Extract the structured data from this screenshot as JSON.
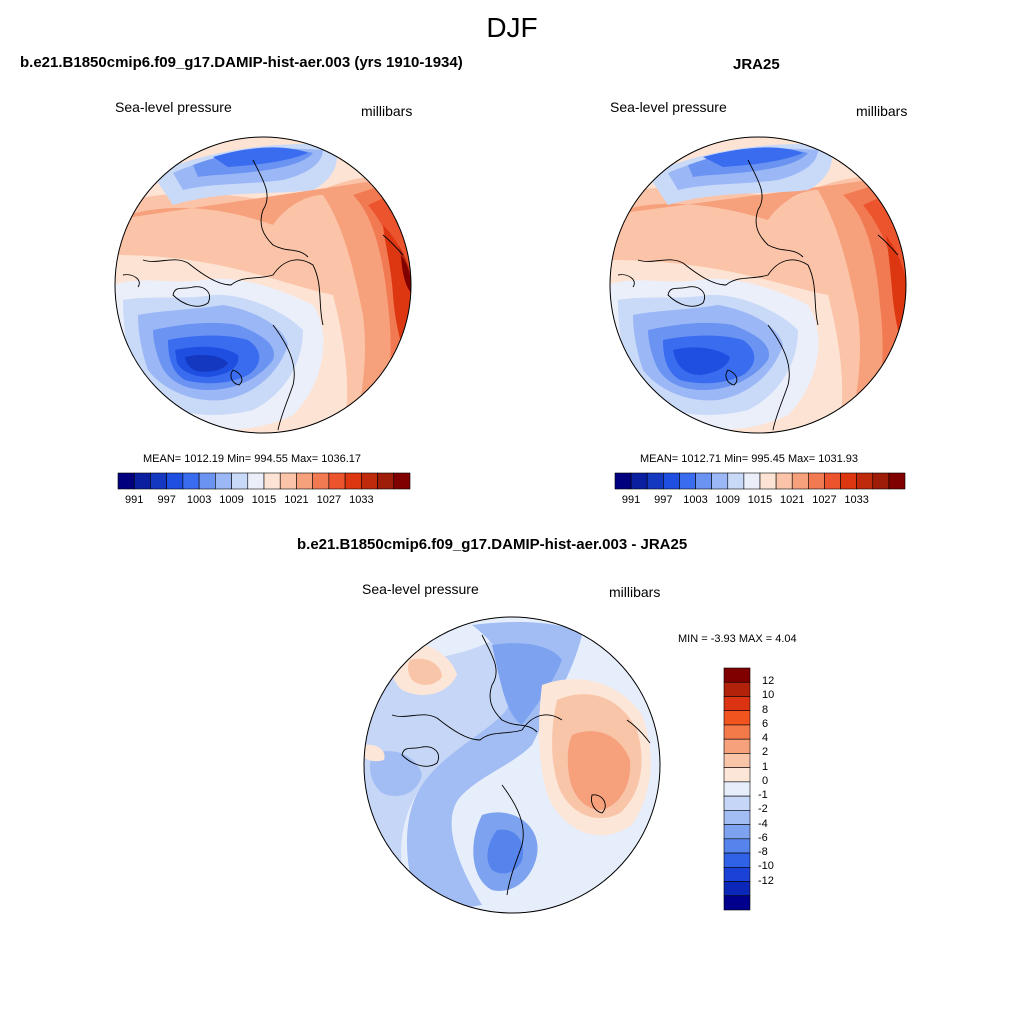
{
  "title": "DJF",
  "panels": [
    {
      "id": "model",
      "title": "b.e21.B1850cmip6.f09_g17.DAMIP-hist-aer.003 (yrs 1910-1934)",
      "left_label": "Sea-level pressure",
      "right_label": "millibars",
      "stats": "MEAN= 1012.19  Min= 994.55  Max= 1036.17"
    },
    {
      "id": "obs",
      "title": "JRA25",
      "left_label": "Sea-level pressure",
      "right_label": "millibars",
      "stats": "MEAN= 1012.71  Min= 995.45  Max= 1031.93"
    },
    {
      "id": "diff",
      "title": "b.e21.B1850cmip6.f09_g17.DAMIP-hist-aer.003 - JRA25",
      "left_label": "Sea-level pressure",
      "right_label": "millibars",
      "stats": "MIN =  -3.93 MAX =   4.04"
    }
  ],
  "abs_colorbar": {
    "colors": [
      "#00007f",
      "#0a1fa0",
      "#1438c0",
      "#1f4fe0",
      "#3a6cf0",
      "#6a93f2",
      "#9bb7f5",
      "#c9d9f8",
      "#ebeffa",
      "#fde3d4",
      "#fbc4a8",
      "#f7a07c",
      "#f27a52",
      "#ec542e",
      "#dd3712",
      "#bf2a0c",
      "#9e1d08",
      "#800000"
    ],
    "labels": [
      "991",
      "997",
      "1003",
      "1009",
      "1015",
      "1021",
      "1027",
      "1033"
    ]
  },
  "diff_colorbar": {
    "colors": [
      "#800000",
      "#b2210a",
      "#dc3412",
      "#f2541f",
      "#f47a4a",
      "#f6a07c",
      "#f9c5a9",
      "#fce6d8",
      "#e6eefb",
      "#c6d6f7",
      "#a2bdf4",
      "#7da2f0",
      "#5484ec",
      "#2f62e6",
      "#1a42d6",
      "#0a27b8",
      "#00008c"
    ],
    "labels": [
      "12",
      "10",
      "8",
      "6",
      "4",
      "2",
      "1",
      "0",
      "-1",
      "-2",
      "-4",
      "-6",
      "-8",
      "-10",
      "-12"
    ]
  },
  "chart_data": [
    {
      "type": "heatmap",
      "title": "b.e21.B1850cmip6.f09_g17.DAMIP-hist-aer.003 (yrs 1910-1934)",
      "variable": "Sea-level pressure",
      "units": "millibars",
      "projection": "north polar stereographic",
      "mean": 1012.19,
      "min": 994.55,
      "max": 1036.17,
      "contour_levels": [
        991,
        994,
        997,
        1000,
        1003,
        1006,
        1009,
        1012,
        1015,
        1018,
        1021,
        1024,
        1027,
        1030,
        1033
      ]
    },
    {
      "type": "heatmap",
      "title": "JRA25",
      "variable": "Sea-level pressure",
      "units": "millibars",
      "projection": "north polar stereographic",
      "mean": 1012.71,
      "min": 995.45,
      "max": 1031.93,
      "contour_levels": [
        991,
        994,
        997,
        1000,
        1003,
        1006,
        1009,
        1012,
        1015,
        1018,
        1021,
        1024,
        1027,
        1030,
        1033
      ]
    },
    {
      "type": "heatmap",
      "title": "b.e21.B1850cmip6.f09_g17.DAMIP-hist-aer.003 - JRA25",
      "variable": "Sea-level pressure",
      "units": "millibars",
      "projection": "north polar stereographic",
      "min": -3.93,
      "max": 4.04,
      "contour_levels": [
        -12,
        -10,
        -8,
        -6,
        -4,
        -2,
        -1,
        0,
        1,
        2,
        4,
        6,
        8,
        10,
        12
      ]
    }
  ]
}
